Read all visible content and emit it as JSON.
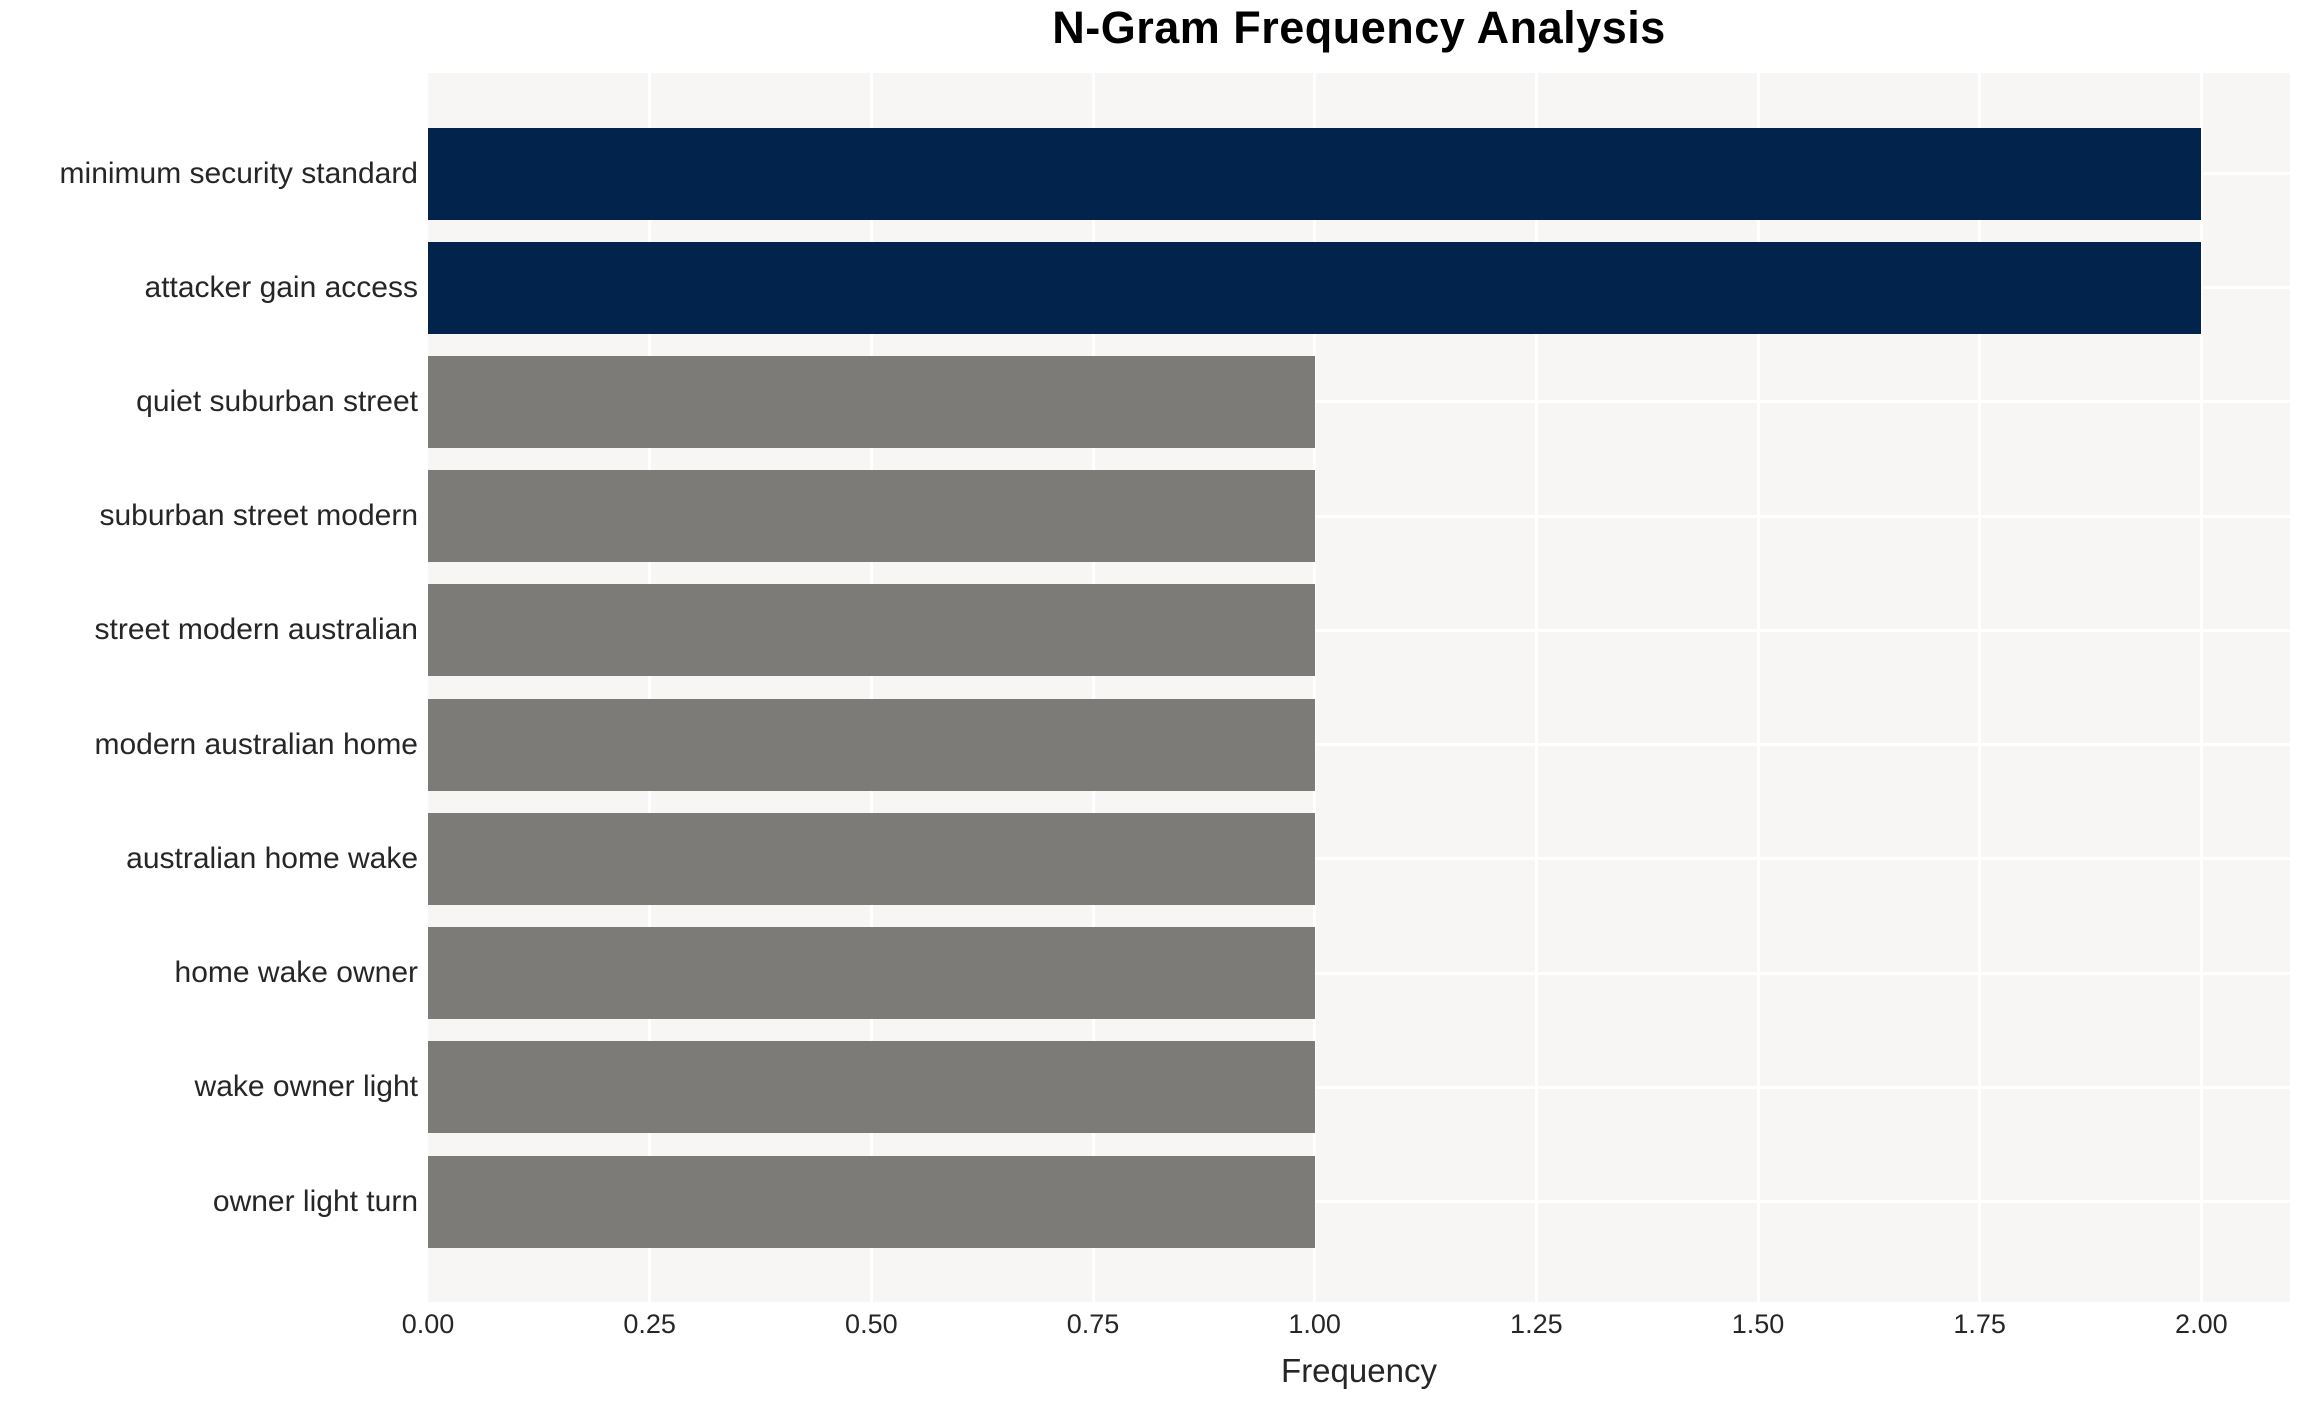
{
  "chart_data": {
    "type": "bar",
    "orientation": "horizontal",
    "title": "N-Gram Frequency Analysis",
    "xlabel": "Frequency",
    "ylabel": "",
    "categories": [
      "minimum security standard",
      "attacker gain access",
      "quiet suburban street",
      "suburban street modern",
      "street modern australian",
      "modern australian home",
      "australian home wake",
      "home wake owner",
      "wake owner light",
      "owner light turn"
    ],
    "values": [
      2,
      2,
      1,
      1,
      1,
      1,
      1,
      1,
      1,
      1
    ],
    "bar_colors": [
      "#02244c",
      "#02244c",
      "#7c7b77",
      "#7c7b77",
      "#7c7b77",
      "#7c7b77",
      "#7c7b77",
      "#7c7b77",
      "#7c7b77",
      "#7c7b77"
    ],
    "xlim": [
      0,
      2.1
    ],
    "xticks": [
      0,
      0.25,
      0.5,
      0.75,
      1.0,
      1.25,
      1.5,
      1.75,
      2.0
    ],
    "xtick_labels": [
      "0.00",
      "0.25",
      "0.50",
      "0.75",
      "1.00",
      "1.25",
      "1.50",
      "1.75",
      "2.00"
    ],
    "grid": true,
    "legend": false,
    "colors": {
      "highlight": "#02244c",
      "default_bar": "#7c7b77",
      "plot_background": "#f7f6f5",
      "gridline": "#ffffff",
      "tick_text": "#262626",
      "title_text": "#000000"
    }
  }
}
